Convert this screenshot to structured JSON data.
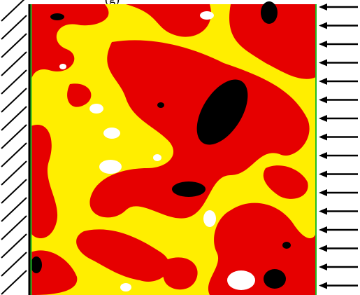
{
  "caption": "(g)"
}
